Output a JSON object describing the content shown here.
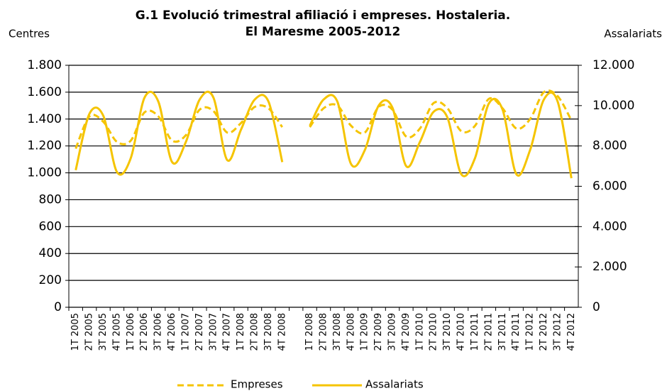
{
  "chart_data": {
    "type": "line",
    "title": [
      "G.1 Evolució trimestral afiliació i empreses. Hostaleria.",
      "El Maresme 2005-2012"
    ],
    "y_label": "Centres",
    "y2_label": "Assalariats",
    "categories": [
      "1T 2005",
      "2T 2005",
      "3T 2005",
      "4T 2005",
      "1T 2006",
      "2T 2006",
      "3T 2006",
      "4T 2006",
      "1T 2007",
      "2T 2007",
      "3T 2007",
      "4T 2007",
      "1T 2008",
      "2T 2008",
      "3T 2008",
      "4T 2008",
      null,
      "1T 2008",
      "2T 2008",
      "3T 2008",
      "4T 2008",
      "1T 2009",
      "2T 2009",
      "3T 2009",
      "4T 2009",
      "1T 2010",
      "2T 2010",
      "3T 2010",
      "4T 2010",
      "1T 2011",
      "2T 2011",
      "3T 2011",
      "4T 2011",
      "1T 2012",
      "2T 2012",
      "3T 2012",
      "4T 2012"
    ],
    "series": [
      {
        "name": "Empreses",
        "color": "#f5c400",
        "dash": true,
        "values": [
          1180,
          1420,
          1380,
          1230,
          1240,
          1450,
          1420,
          1240,
          1280,
          1470,
          1460,
          1300,
          1370,
          1490,
          1480,
          1340,
          null,
          1340,
          1480,
          1500,
          1350,
          1300,
          1490,
          1470,
          1270,
          1330,
          1520,
          1480,
          1310,
          1350,
          1550,
          1480,
          1330,
          1400,
          1600,
          1570,
          1390
        ]
      },
      {
        "name": "Assalariats",
        "color": "#f5c400",
        "dash": false,
        "axis": "y2",
        "values": [
          6800,
          9600,
          9500,
          6700,
          7400,
          10400,
          10200,
          7200,
          8200,
          10300,
          10400,
          7300,
          8800,
          10300,
          10200,
          7200,
          null,
          9000,
          10300,
          10200,
          7100,
          7800,
          10000,
          9900,
          7000,
          8200,
          9700,
          9400,
          6600,
          7400,
          10100,
          9800,
          6600,
          7800,
          10300,
          10200,
          6400
        ]
      }
    ],
    "ylim": [
      0,
      1800
    ],
    "yticks": [
      0,
      200,
      400,
      600,
      800,
      {
        "value": 1000,
        "label": "1.000"
      },
      {
        "value": 1200,
        "label": "1.200"
      },
      {
        "value": 1400,
        "label": "1.400"
      },
      {
        "value": 1600,
        "label": "1.600"
      },
      {
        "value": 1800,
        "label": "1.800"
      }
    ],
    "y2lim": [
      0,
      12000
    ],
    "y2ticks": [
      0,
      {
        "value": 2000,
        "label": "2.000"
      },
      {
        "value": 4000,
        "label": "4.000"
      },
      {
        "value": 6000,
        "label": "6.000"
      },
      {
        "value": 8000,
        "label": "8.000"
      },
      {
        "value": 10000,
        "label": "10.000"
      },
      {
        "value": 12000,
        "label": "12.000"
      }
    ],
    "grid": true,
    "legend": "bottom"
  }
}
